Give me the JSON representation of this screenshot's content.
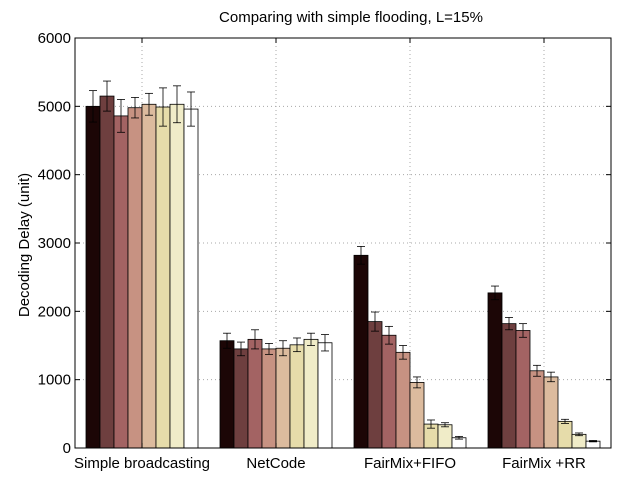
{
  "chart_data": {
    "type": "bar",
    "title": "Comparing with simple flooding, L=15%",
    "xlabel": "",
    "ylabel": "Decoding Delay (unit)",
    "ylim": [
      0,
      6000
    ],
    "yticks": [
      0,
      1000,
      2000,
      3000,
      4000,
      5000,
      6000
    ],
    "grid": true,
    "legend": false,
    "categories": [
      "Simple broadcasting",
      "NetCode",
      "FairMix+FIFO",
      "FairMix +RR"
    ],
    "series_colors": [
      "#1c0606",
      "#6e3f3f",
      "#a36363",
      "#c79282",
      "#dcbb9e",
      "#e6dcaa",
      "#f0ecc8",
      "#ffffff"
    ],
    "series": [
      {
        "values": [
          5000,
          1570,
          2820,
          2270
        ],
        "errors": [
          230,
          110,
          130,
          100
        ]
      },
      {
        "values": [
          5150,
          1450,
          1850,
          1820
        ],
        "errors": [
          220,
          100,
          140,
          90
        ]
      },
      {
        "values": [
          4860,
          1590,
          1650,
          1720
        ],
        "errors": [
          240,
          140,
          130,
          100
        ]
      },
      {
        "values": [
          4980,
          1450,
          1400,
          1130
        ],
        "errors": [
          150,
          80,
          100,
          80
        ]
      },
      {
        "values": [
          5030,
          1460,
          960,
          1040
        ],
        "errors": [
          160,
          110,
          80,
          70
        ]
      },
      {
        "values": [
          4990,
          1510,
          350,
          390
        ],
        "errors": [
          280,
          100,
          60,
          30
        ]
      },
      {
        "values": [
          5030,
          1590,
          340,
          200
        ],
        "errors": [
          270,
          90,
          30,
          20
        ]
      },
      {
        "values": [
          4960,
          1540,
          150,
          100
        ],
        "errors": [
          250,
          120,
          20,
          10
        ]
      }
    ]
  }
}
